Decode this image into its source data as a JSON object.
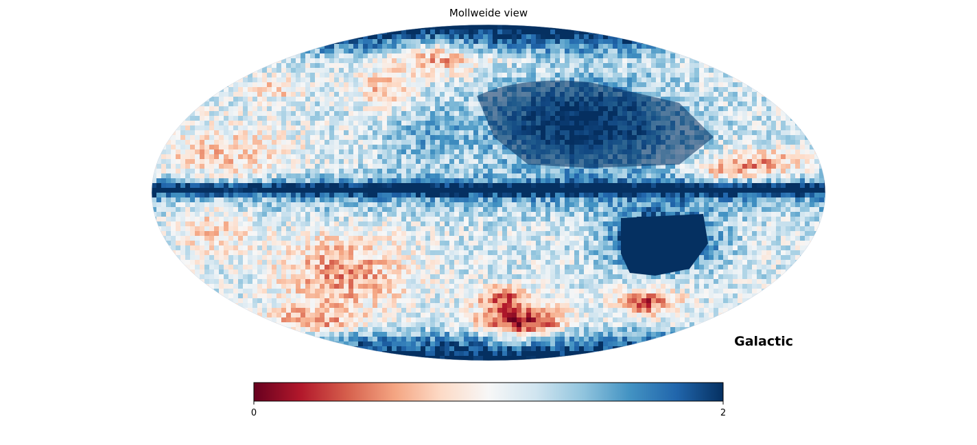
{
  "chart_data": {
    "type": "heatmap",
    "projection": "Mollweide",
    "title": "Mollweide view",
    "coordinate_system": "Galactic",
    "colormap": "RdBu",
    "colormap_stops": [
      "#67001f",
      "#b2182b",
      "#d6604d",
      "#f4a582",
      "#fddbc7",
      "#f7f7f7",
      "#d1e5f0",
      "#92c5de",
      "#4393c3",
      "#2166ac",
      "#053061"
    ],
    "colorbar": {
      "min": 0,
      "max": 2,
      "tick_labels": [
        "0",
        "2"
      ],
      "orientation": "horizontal",
      "placement": "bottom"
    },
    "features": [
      {
        "region": "galactic plane band",
        "value_level": "high (~2)"
      },
      {
        "region": "northern cap",
        "value_level": "high (~2)"
      },
      {
        "region": "southern cap",
        "value_level": "high (~2)"
      },
      {
        "region": "lower-right saturated patch",
        "value_level": "high (~2)"
      },
      {
        "region": "lower-center patch",
        "value_level": "low (~0.3-0.6)"
      },
      {
        "region": "upper-left lobe",
        "value_level": "mixed low (~0.5-1)"
      }
    ]
  }
}
